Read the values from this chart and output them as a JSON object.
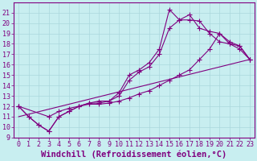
{
  "xlabel": "Windchill (Refroidissement éolien,°C)",
  "xlim": [
    -0.5,
    23.5
  ],
  "ylim": [
    9,
    22
  ],
  "xticks": [
    0,
    1,
    2,
    3,
    4,
    5,
    6,
    7,
    8,
    9,
    10,
    11,
    12,
    13,
    14,
    15,
    16,
    17,
    18,
    19,
    20,
    21,
    22,
    23
  ],
  "yticks": [
    9,
    10,
    11,
    12,
    13,
    14,
    15,
    16,
    17,
    18,
    19,
    20,
    21
  ],
  "bg_color": "#c8eef0",
  "line_color": "#800080",
  "grid_color": "#aad8dc",
  "lines": [
    {
      "x": [
        0,
        1,
        2,
        3,
        4,
        5,
        6,
        7,
        8,
        9,
        10,
        11,
        12,
        13,
        14,
        15,
        16,
        17,
        18,
        19,
        20,
        21,
        22,
        23
      ],
      "y": [
        12,
        11,
        10.2,
        9.6,
        11.0,
        11.5,
        12.0,
        12.3,
        12.5,
        12.5,
        13.3,
        15.0,
        15.5,
        16.2,
        17.5,
        21.3,
        20.3,
        20.3,
        20.2,
        19.0,
        18.2,
        18.0,
        17.8,
        16.5
      ],
      "has_marker": true
    },
    {
      "x": [
        0,
        1,
        2,
        3,
        4,
        5,
        6,
        7,
        8,
        9,
        10,
        11,
        12,
        13,
        14,
        15,
        16,
        17,
        18,
        19,
        20,
        21,
        22,
        23
      ],
      "y": [
        12,
        11,
        10.2,
        9.6,
        11.0,
        11.5,
        12.0,
        12.3,
        12.3,
        12.5,
        13.0,
        14.5,
        15.3,
        15.8,
        17.0,
        19.5,
        20.3,
        20.8,
        19.5,
        19.2,
        19.0,
        18.0,
        17.5,
        16.5
      ],
      "has_marker": true
    },
    {
      "x": [
        0,
        3,
        4,
        5,
        6,
        7,
        8,
        9,
        10,
        11,
        12,
        13,
        14,
        15,
        16,
        17,
        18,
        19,
        20,
        21,
        22,
        23
      ],
      "y": [
        12,
        11,
        11.5,
        11.8,
        12.0,
        12.2,
        12.2,
        12.3,
        12.5,
        12.8,
        13.2,
        13.5,
        14.0,
        14.5,
        15.0,
        15.5,
        16.5,
        17.5,
        19.0,
        18.2,
        17.8,
        16.5
      ],
      "has_marker": true
    },
    {
      "x": [
        0,
        23
      ],
      "y": [
        11,
        16.5
      ],
      "has_marker": false
    }
  ],
  "marker": "+",
  "marker_size": 4,
  "font_family": "monospace",
  "tick_fontsize": 6,
  "label_fontsize": 7.5
}
